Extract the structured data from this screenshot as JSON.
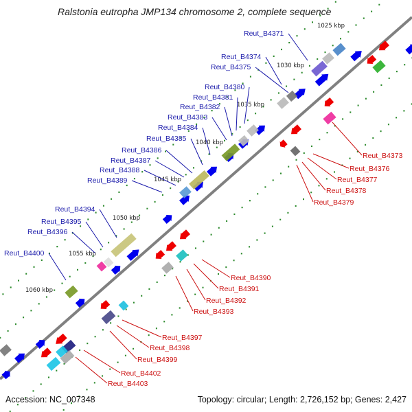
{
  "title": "Ralstonia eutropha JMP134 chromosome 2, complete sequence",
  "accession": "Accession: NC_007348",
  "summary": "Topology: circular; Length: 2,726,152 bp; Genes: 2,427",
  "colors": {
    "backbone": "#808080",
    "dots": "#2e8b2e",
    "forward_label": "#1a1aaa",
    "reverse_label": "#cc1111",
    "forward_gene": "#0000ee",
    "reverse_gene": "#ee0000"
  },
  "scale_labels": [
    "1025 kbp",
    "1030 kbp",
    "1035 kbp",
    "1040 kbp",
    "1045 kbp",
    "1050 kbp",
    "1055 kbp",
    "1060 kbp"
  ],
  "forward_genes": [
    "Reut_B4371",
    "Reut_B4374",
    "Reut_B4375",
    "Reut_B4380",
    "Reut_B4381",
    "Reut_B4382",
    "Reut_B4383",
    "Reut_B4384",
    "Reut_B4385",
    "Reut_B4386",
    "Reut_B4387",
    "Reut_B4388",
    "Reut_B4389",
    "Reut_B4394",
    "Reut_B4395",
    "Reut_B4396",
    "Reut_B4400"
  ],
  "reverse_genes": [
    "Reut_B4373",
    "Reut_B4376",
    "Reut_B4377",
    "Reut_B4378",
    "Reut_B4379",
    "Reut_B4390",
    "Reut_B4391",
    "Reut_B4392",
    "Reut_B4393",
    "Reut_B4397",
    "Reut_B4398",
    "Reut_B4399",
    "Reut_B4402",
    "Reut_B4403"
  ]
}
